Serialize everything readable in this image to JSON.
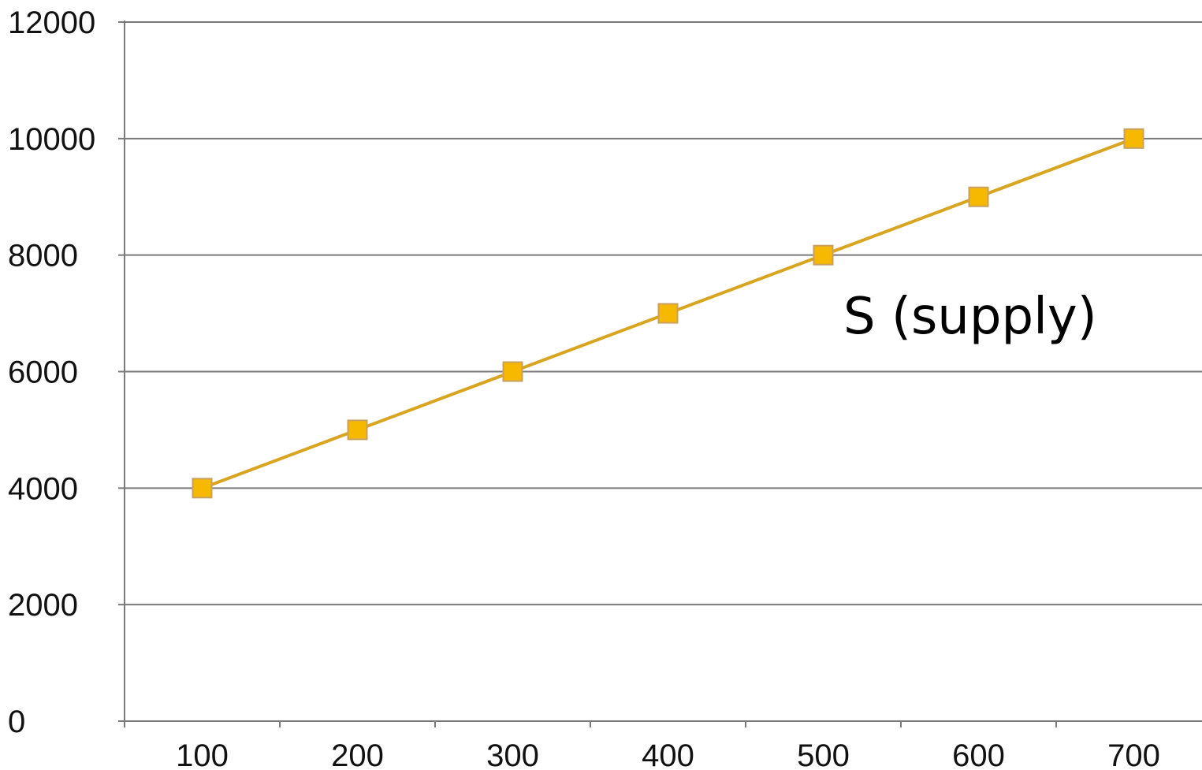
{
  "chart_data": {
    "type": "line",
    "x": [
      100,
      200,
      300,
      400,
      500,
      600,
      700
    ],
    "series": [
      {
        "values": [
          4000,
          5000,
          6000,
          7000,
          8000,
          9000,
          10000
        ],
        "color": "#f5b800",
        "marker": "square"
      }
    ],
    "x_tick_labels": [
      "100",
      "200",
      "300",
      "400",
      "500",
      "600",
      "700"
    ],
    "y_tick_labels": [
      "0",
      "2000",
      "4000",
      "6000",
      "8000",
      "10000",
      "12000"
    ],
    "ylim": [
      0,
      12000
    ],
    "y_ticks": [
      0,
      2000,
      4000,
      6000,
      8000,
      10000,
      12000
    ],
    "grid": "horizontal",
    "annotation": "S (supply)",
    "title": "",
    "xlabel": "",
    "ylabel": ""
  },
  "colors": {
    "line": "#d9a520",
    "marker_fill": "#f7b900",
    "marker_stroke": "#c8a060",
    "grid": "#7a7a7a",
    "axis": "#7a7a7a"
  }
}
